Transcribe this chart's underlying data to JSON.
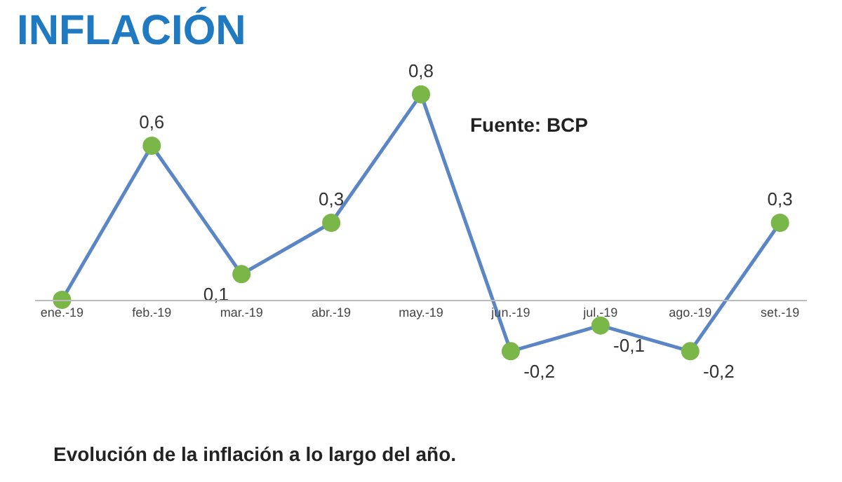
{
  "chart_data": {
    "type": "line",
    "title": "INFLACIÓN",
    "categories": [
      "ene.-19",
      "feb.-19",
      "mar.-19",
      "abr.-19",
      "may.-19",
      "jun.-19",
      "jul.-19",
      "ago.-19",
      "set.-19"
    ],
    "series": [
      {
        "color": "#5b86c5",
        "colors": [
          "#7ab648",
          "#7ab648",
          "#7ab648",
          "#7ab648",
          "#7ab648",
          "#7ab648",
          "#7ab648",
          "#7ab648",
          "#7ab648"
        ],
        "values": [
          0,
          0.6,
          0.1,
          0.3,
          0.8,
          -0.2,
          -0.1,
          -0.2,
          0.3
        ],
        "value_labels": [
          null,
          "0,6",
          "0,1",
          "0,3",
          "0,8",
          "-0,2",
          "-0,1",
          "-0,2",
          "0,3"
        ]
      }
    ],
    "marker": "circle",
    "line_style": "solid",
    "legend": false,
    "annotations": [
      "Fuente: BCP",
      "Evolución de la inflación a lo largo del año."
    ]
  }
}
